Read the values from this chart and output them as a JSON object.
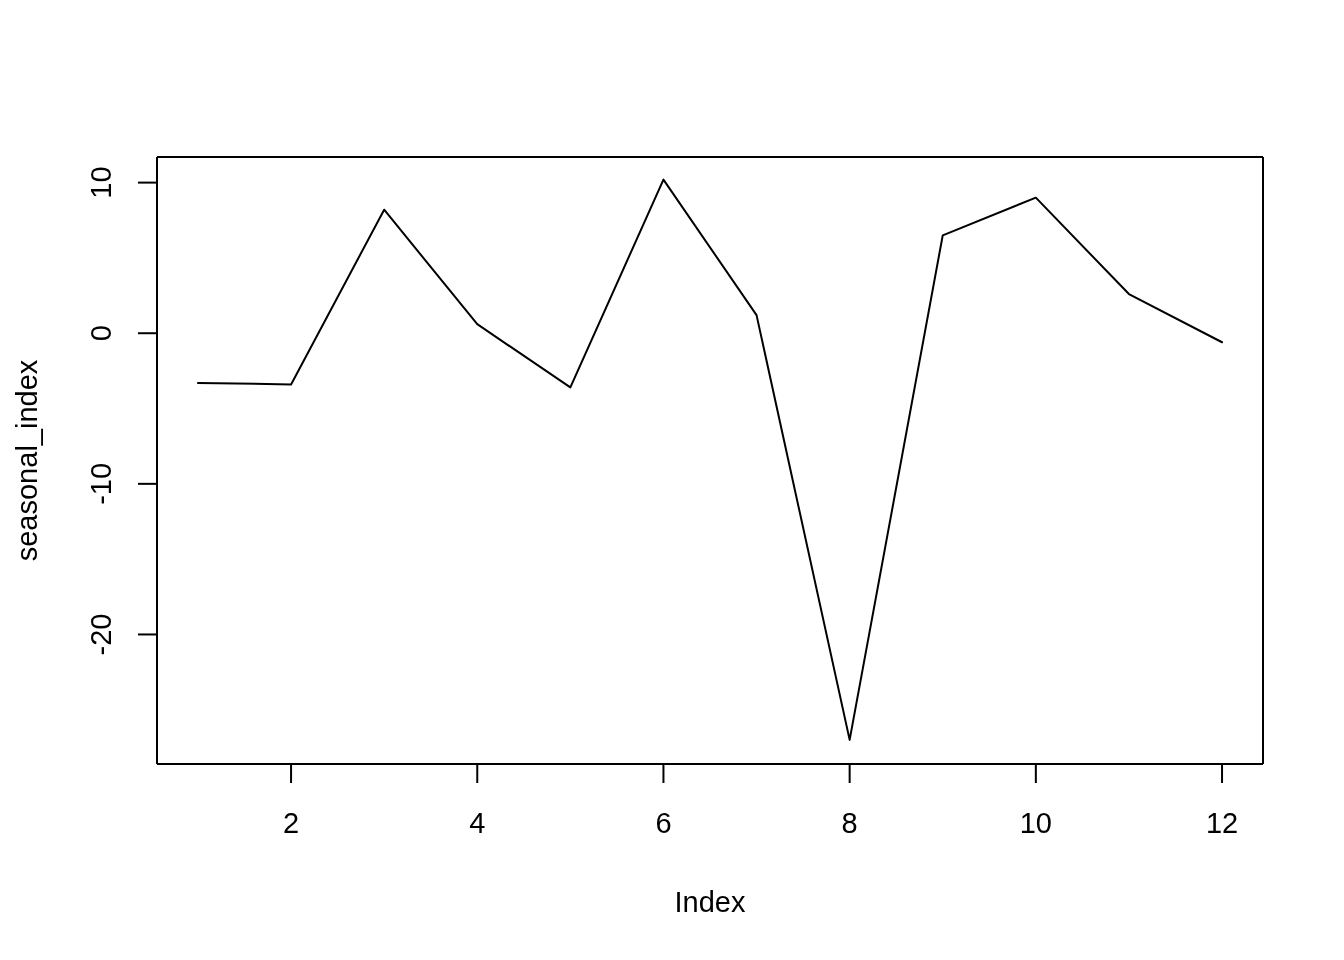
{
  "chart_data": {
    "type": "line",
    "xlabel": "Index",
    "ylabel": "seasonal_index",
    "x": [
      1,
      2,
      3,
      4,
      5,
      6,
      7,
      8,
      9,
      10,
      11,
      12
    ],
    "values": [
      -3.3,
      -3.4,
      8.2,
      0.6,
      -3.6,
      10.2,
      1.2,
      -27.0,
      6.5,
      9.0,
      2.6,
      -0.6
    ],
    "color": "#000000",
    "line_style": "solid",
    "xlim": [
      0.56,
      12.44
    ],
    "ylim": [
      -28.6,
      11.7
    ],
    "xticks": [
      2,
      4,
      6,
      8,
      10,
      12
    ],
    "yticks": [
      -20,
      -10,
      0,
      10
    ]
  }
}
